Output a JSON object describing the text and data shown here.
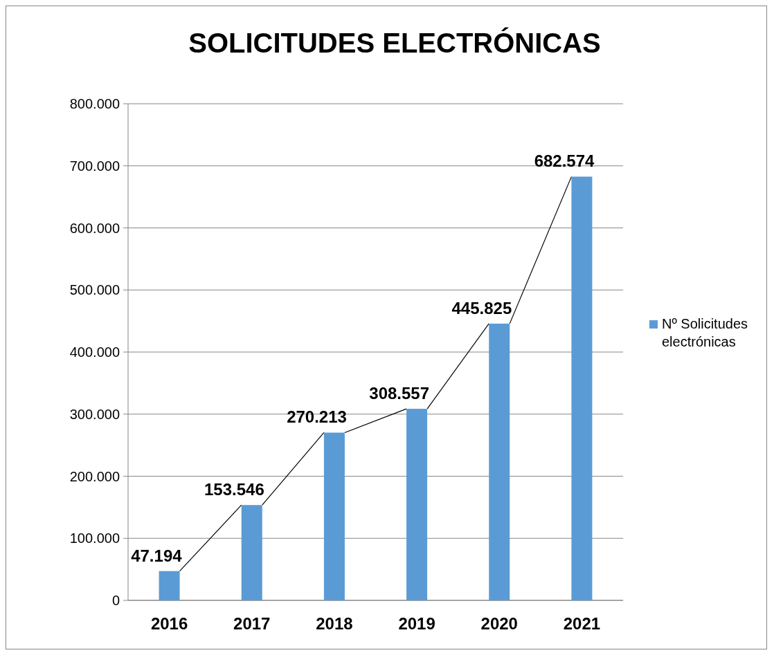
{
  "chart_data": {
    "type": "bar",
    "title": "SOLICITUDES ELECTRÓNICAS",
    "categories": [
      "2016",
      "2017",
      "2018",
      "2019",
      "2020",
      "2021"
    ],
    "series": [
      {
        "name": "Nº Solicitudes electrónicas",
        "color": "#5b9bd5",
        "values": [
          47194,
          153546,
          270213,
          308557,
          445825,
          682574
        ],
        "value_labels": [
          "47.194",
          "153.546",
          "270.213",
          "308.557",
          "445.825",
          "682.574"
        ]
      }
    ],
    "ylim": [
      0,
      800000
    ],
    "yticks": [
      {
        "value": 0,
        "label": "0"
      },
      {
        "value": 100000,
        "label": "100.000"
      },
      {
        "value": 200000,
        "label": "200.000"
      },
      {
        "value": 300000,
        "label": "300.000"
      },
      {
        "value": 400000,
        "label": "400.000"
      },
      {
        "value": 500000,
        "label": "500.000"
      },
      {
        "value": 600000,
        "label": "600.000"
      },
      {
        "value": 700000,
        "label": "700.000"
      },
      {
        "value": 800000,
        "label": "800.000"
      }
    ],
    "grid": "y",
    "legend": "right"
  }
}
